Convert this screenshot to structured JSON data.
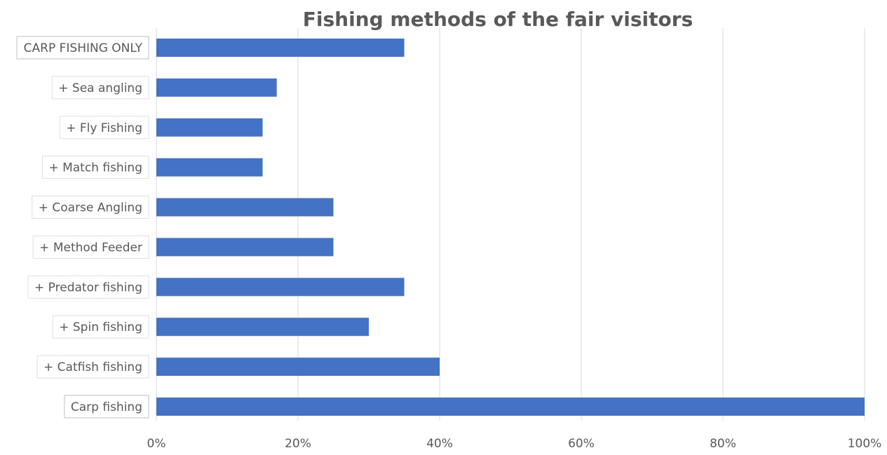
{
  "chart_data": {
    "type": "bar",
    "orientation": "horizontal",
    "title": "Fishing methods of the fair visitors",
    "xlabel": "",
    "ylabel": "",
    "categories": [
      "CARP FISHING ONLY",
      "+ Sea angling",
      "+ Fly Fishing",
      "+ Match fishing",
      "+ Coarse Angling",
      "+ Method Feeder",
      "+ Predator fishing",
      "+ Spin fishing",
      "+ Catfish fishing",
      "Carp fishing"
    ],
    "values": [
      35,
      17,
      15,
      15,
      25,
      25,
      35,
      30,
      40,
      100
    ],
    "xlim": [
      0,
      100
    ],
    "x_ticks": [
      "0%",
      "20%",
      "40%",
      "60%",
      "80%",
      "100%"
    ],
    "grid": true,
    "legend": "none",
    "colors": {
      "bar": "#4472C4",
      "grid": "#d9d9d9",
      "text": "#595959",
      "title": "#595959",
      "label_box_border": "#bfbfbf"
    }
  }
}
